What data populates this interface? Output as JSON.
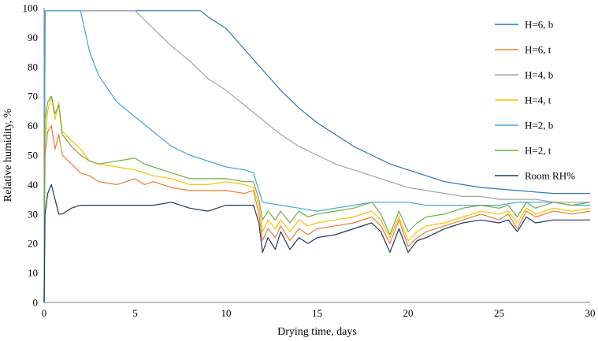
{
  "chart_data": {
    "type": "line",
    "title": "",
    "xlabel": "Drying time, days",
    "ylabel": "Relative humidity, %",
    "xlim": [
      0,
      30
    ],
    "ylim": [
      0,
      100
    ],
    "xticks": [
      0,
      5,
      10,
      15,
      20,
      25,
      30
    ],
    "yticks": [
      0,
      10,
      20,
      30,
      40,
      50,
      60,
      70,
      80,
      90,
      100
    ],
    "grid": false,
    "legend_position": "top-right",
    "series": [
      {
        "name": "H=6, b",
        "color": "#2e75b6",
        "x": [
          0,
          0.05,
          1,
          5,
          8.6,
          9,
          10,
          11,
          12,
          13,
          14,
          15,
          16,
          17,
          18,
          19,
          20,
          21,
          22,
          23,
          24,
          25,
          26,
          27,
          28,
          29,
          30
        ],
        "y": [
          0,
          99,
          99,
          99,
          99,
          97,
          93,
          86,
          79,
          72,
          66,
          61,
          57,
          53,
          50,
          47,
          45,
          43,
          41,
          40,
          39,
          38.5,
          38,
          37.5,
          37,
          37,
          37
        ]
      },
      {
        "name": "H=6, t",
        "color": "#ed7d31",
        "x": [
          0,
          0.05,
          0.2,
          0.4,
          0.6,
          0.8,
          1,
          1.5,
          2,
          2.5,
          3,
          4,
          5,
          5.5,
          6,
          7,
          8,
          9,
          10,
          11,
          11.5,
          11.8,
          12,
          12.3,
          12.7,
          13,
          13.5,
          14,
          14.5,
          15,
          16,
          17,
          18,
          18.5,
          19,
          19.5,
          20,
          20.5,
          21,
          22,
          23,
          24,
          25,
          25.5,
          26,
          26.5,
          27,
          28,
          29,
          30
        ],
        "y": [
          0,
          50,
          58,
          60,
          52,
          57,
          50,
          47,
          44,
          43,
          41,
          40,
          42,
          40,
          41,
          39,
          38,
          38,
          38,
          37,
          38,
          30,
          21,
          25,
          22,
          26,
          21,
          25,
          23,
          25,
          26,
          27,
          29,
          26,
          20,
          28,
          19,
          22,
          24,
          26,
          28,
          30,
          28,
          30,
          25,
          31,
          29,
          31,
          30,
          31
        ]
      },
      {
        "name": "H=4, b",
        "color": "#a5a5a5",
        "x": [
          0,
          0.05,
          1,
          5,
          6,
          7,
          8,
          9,
          10,
          11,
          12,
          13,
          14,
          15,
          16,
          17,
          18,
          19,
          20,
          21,
          22,
          23,
          24,
          25,
          26,
          27,
          28,
          29,
          30
        ],
        "y": [
          0,
          99,
          99,
          99,
          93,
          87,
          82,
          76,
          72,
          67,
          62,
          57,
          53,
          50,
          47,
          45,
          43,
          41,
          39,
          38,
          37,
          36,
          36,
          35,
          35,
          35,
          34,
          34,
          34
        ]
      },
      {
        "name": "H=4, t",
        "color": "#ffc000",
        "x": [
          0,
          0.05,
          0.2,
          0.4,
          0.6,
          0.8,
          1,
          1.5,
          2,
          2.5,
          3,
          4,
          5,
          5.5,
          6,
          7,
          8,
          9,
          10,
          11,
          11.5,
          11.8,
          12,
          12.3,
          12.7,
          13,
          13.5,
          14,
          14.5,
          15,
          16,
          17,
          18,
          18.5,
          19,
          19.5,
          20,
          20.5,
          21,
          22,
          23,
          24,
          25,
          25.5,
          26,
          26.5,
          27,
          28,
          29,
          30
        ],
        "y": [
          0,
          55,
          65,
          70,
          62,
          68,
          58,
          55,
          52,
          48,
          47,
          46,
          45,
          44,
          43,
          42,
          40,
          40,
          41,
          40,
          39,
          33,
          24,
          28,
          25,
          28,
          24,
          28,
          26,
          27,
          28,
          29,
          31,
          28,
          22,
          29,
          21,
          24,
          26,
          27,
          29,
          31,
          30,
          31,
          27,
          32,
          30,
          32,
          31,
          32
        ]
      },
      {
        "name": "H=2, b",
        "color": "#41a5dc",
        "x": [
          0,
          0.05,
          1,
          2,
          2.5,
          3,
          4,
          5,
          6,
          7,
          8,
          9,
          10,
          11,
          11.5,
          12,
          13,
          14,
          15,
          16,
          17,
          18,
          19,
          20,
          21,
          22,
          23,
          24,
          25,
          26,
          27,
          28,
          29,
          30
        ],
        "y": [
          0,
          99,
          99,
          99,
          85,
          77,
          68,
          63,
          58,
          53,
          50,
          48,
          46,
          45,
          44,
          34,
          33,
          32,
          31,
          32,
          33,
          34,
          34,
          34,
          33,
          33,
          33,
          33,
          33,
          34,
          34,
          34,
          33,
          33
        ]
      },
      {
        "name": "H=2, t",
        "color": "#70ad47",
        "x": [
          0,
          0.05,
          0.2,
          0.4,
          0.6,
          0.8,
          1,
          1.5,
          2,
          2.5,
          3,
          4,
          5,
          5.5,
          6,
          7,
          8,
          9,
          10,
          11,
          11.5,
          11.8,
          12,
          12.3,
          12.7,
          13,
          13.5,
          14,
          14.5,
          15,
          16,
          17,
          18,
          18.5,
          19,
          19.5,
          20,
          20.5,
          21,
          22,
          23,
          24,
          25,
          25.5,
          26,
          26.5,
          27,
          28,
          29,
          30
        ],
        "y": [
          0,
          62,
          68,
          70,
          64,
          67,
          57,
          53,
          50,
          48,
          47,
          48,
          49,
          47,
          46,
          44,
          42,
          42,
          42,
          41,
          41,
          35,
          28,
          31,
          28,
          31,
          27,
          31,
          29,
          30,
          31,
          32,
          34,
          30,
          23,
          31,
          24,
          27,
          29,
          30,
          32,
          33,
          32,
          33,
          29,
          34,
          32,
          34,
          33,
          34
        ]
      },
      {
        "name": "Room RH%",
        "color": "#1f3864",
        "x": [
          0,
          0.05,
          0.2,
          0.4,
          0.6,
          0.8,
          1,
          1.5,
          2,
          3,
          4,
          5,
          6,
          7,
          8,
          9,
          10,
          11,
          11.5,
          11.8,
          12,
          12.3,
          12.7,
          13,
          13.5,
          14,
          14.5,
          15,
          16,
          17,
          18,
          18.5,
          19,
          19.5,
          20,
          20.5,
          21,
          22,
          23,
          24,
          25,
          25.5,
          26,
          26.5,
          27,
          28,
          29,
          30
        ],
        "y": [
          0,
          30,
          37,
          40,
          35,
          30,
          30,
          32,
          33,
          33,
          33,
          33,
          33,
          34,
          32,
          31,
          33,
          33,
          33,
          27,
          17,
          22,
          18,
          24,
          18,
          22,
          20,
          22,
          23,
          25,
          27,
          24,
          17,
          25,
          17,
          21,
          22,
          25,
          27,
          28,
          27,
          28,
          24,
          29,
          27,
          28,
          28,
          28
        ]
      }
    ]
  }
}
